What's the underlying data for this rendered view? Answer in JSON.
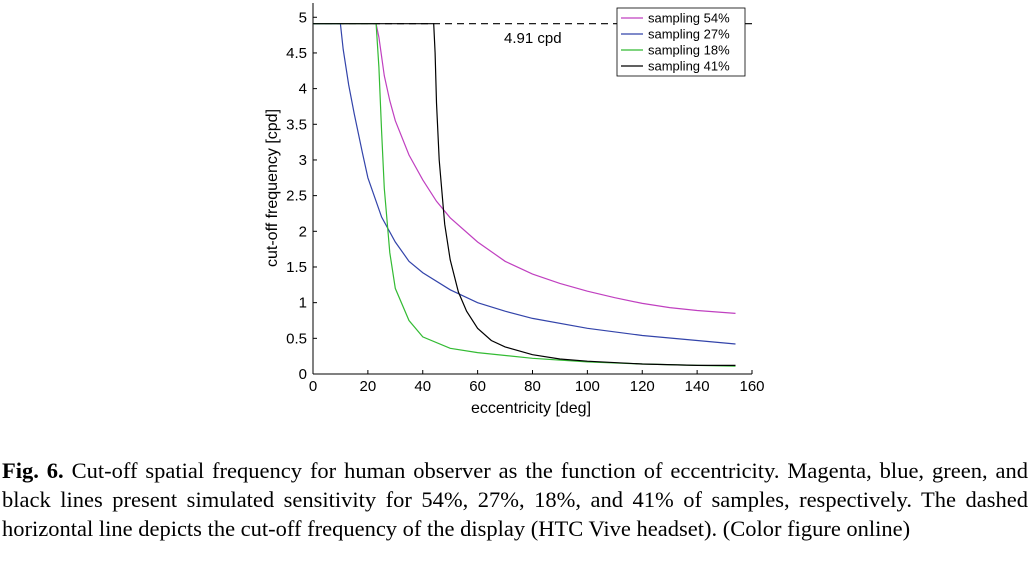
{
  "chart_data": {
    "type": "line",
    "xlabel": "eccentricity [deg]",
    "ylabel": "cut-off frequency [cpd]",
    "xlim": [
      0,
      160
    ],
    "ylim": [
      0,
      5.2
    ],
    "xticks": [
      0,
      20,
      40,
      60,
      80,
      100,
      120,
      140,
      160
    ],
    "yticks": [
      0,
      0.5,
      1,
      1.5,
      2,
      2.5,
      3,
      3.5,
      4,
      4.5,
      5
    ],
    "ytick_labels": [
      "0",
      "0.5",
      "1",
      "1.5",
      "2",
      "2.5",
      "3",
      "3.5",
      "4",
      "4.5",
      "5"
    ],
    "grid": false,
    "legend_position": "top-right",
    "colors": {
      "sampling_54": "#c040c0",
      "sampling_27": "#3344aa",
      "sampling_18": "#33bb33",
      "sampling_41": "#000000",
      "display_limit": "#000000"
    },
    "series": [
      {
        "name": "sampling 54%",
        "color": "#c040c0",
        "x": [
          0,
          23,
          24,
          26,
          28,
          30,
          35,
          40,
          45,
          50,
          60,
          70,
          80,
          90,
          100,
          110,
          120,
          130,
          140,
          154
        ],
        "y": [
          4.91,
          4.91,
          4.72,
          4.18,
          3.83,
          3.55,
          3.07,
          2.72,
          2.42,
          2.19,
          1.85,
          1.58,
          1.4,
          1.27,
          1.16,
          1.07,
          0.99,
          0.93,
          0.89,
          0.85
        ]
      },
      {
        "name": "sampling 27%",
        "color": "#3344aa",
        "x": [
          0,
          10,
          11,
          13,
          15,
          18,
          20,
          25,
          30,
          35,
          40,
          50,
          60,
          70,
          80,
          100,
          120,
          140,
          154
        ],
        "y": [
          4.91,
          4.91,
          4.55,
          4.05,
          3.65,
          3.1,
          2.75,
          2.2,
          1.85,
          1.58,
          1.42,
          1.18,
          1.0,
          0.88,
          0.78,
          0.64,
          0.54,
          0.47,
          0.42
        ]
      },
      {
        "name": "sampling 18%",
        "color": "#33bb33",
        "x": [
          0,
          23,
          24,
          25,
          26,
          28,
          30,
          35,
          40,
          50,
          60,
          80,
          100,
          120,
          140,
          154
        ],
        "y": [
          4.91,
          4.91,
          4.3,
          3.4,
          2.6,
          1.7,
          1.2,
          0.75,
          0.52,
          0.36,
          0.3,
          0.22,
          0.17,
          0.14,
          0.12,
          0.11
        ]
      },
      {
        "name": "sampling 41%",
        "color": "#000000",
        "x": [
          0,
          44,
          44.5,
          45,
          46,
          48,
          50,
          53,
          56,
          60,
          65,
          70,
          80,
          90,
          100,
          120,
          140,
          154
        ],
        "y": [
          4.91,
          4.91,
          4.5,
          3.8,
          3.0,
          2.1,
          1.6,
          1.15,
          0.88,
          0.64,
          0.47,
          0.38,
          0.27,
          0.21,
          0.18,
          0.14,
          0.12,
          0.12
        ]
      }
    ],
    "reference_line": {
      "y": 4.91,
      "style": "dashed",
      "label": "4.91 cpd"
    }
  },
  "caption": {
    "label": "Fig. 6.",
    "text": " Cut-off spatial frequency for human observer as the function of eccentricity. Magenta, blue, green, and black lines present simulated sensitivity for 54%, 27%, 18%, and 41% of samples, respectively. The dashed horizontal line depicts the cut-off frequency of the display (HTC Vive headset). (Color figure online)"
  }
}
